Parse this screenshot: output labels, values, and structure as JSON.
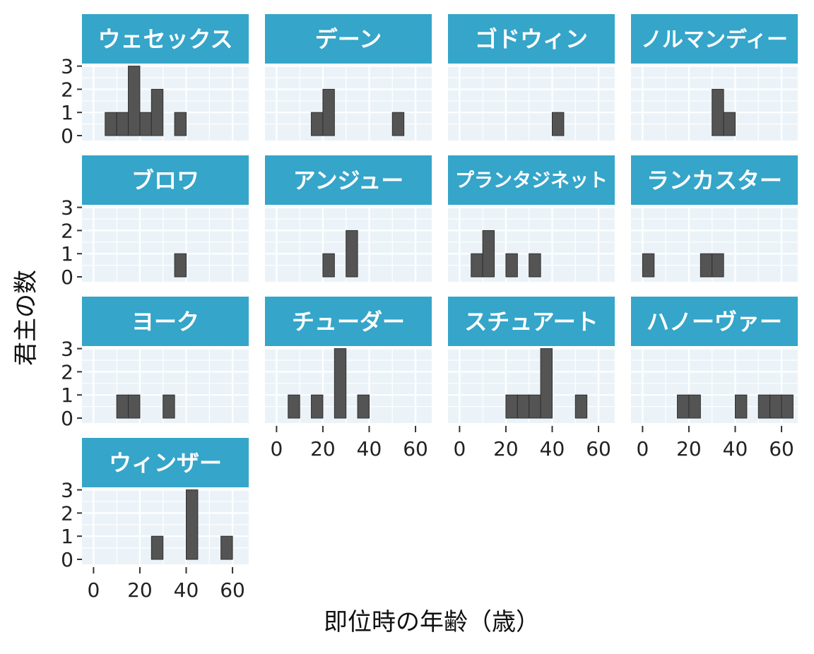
{
  "chart_data": {
    "type": "bar",
    "xlabel": "即位時の年齢（歳）",
    "ylabel": "君主の数",
    "xlim": [
      -5,
      67
    ],
    "ylim": [
      0,
      3
    ],
    "x_ticks": [
      0,
      20,
      40,
      60
    ],
    "y_ticks": [
      0,
      1,
      2,
      3
    ],
    "bin_width": 5,
    "grid": true,
    "colors": {
      "strip": "#35A5C9",
      "strip_text": "#ffffff",
      "panel_bg": "#EBF3F8",
      "bar": "#545454",
      "bar_stroke": "#2f2f2f"
    },
    "facets": [
      {
        "title": "ウェセックス",
        "bins": [
          {
            "x": 7.5,
            "count": 1
          },
          {
            "x": 12.5,
            "count": 1
          },
          {
            "x": 17.5,
            "count": 3
          },
          {
            "x": 22.5,
            "count": 1
          },
          {
            "x": 27.5,
            "count": 2
          },
          {
            "x": 37.5,
            "count": 1
          }
        ]
      },
      {
        "title": "デーン",
        "bins": [
          {
            "x": 17.5,
            "count": 1
          },
          {
            "x": 22.5,
            "count": 2
          },
          {
            "x": 52.5,
            "count": 1
          }
        ]
      },
      {
        "title": "ゴドウィン",
        "bins": [
          {
            "x": 42.5,
            "count": 1
          }
        ]
      },
      {
        "title": "ノルマンディー",
        "bins": [
          {
            "x": 32.5,
            "count": 2
          },
          {
            "x": 37.5,
            "count": 1
          }
        ]
      },
      {
        "title": "ブロワ",
        "bins": [
          {
            "x": 37.5,
            "count": 1
          }
        ]
      },
      {
        "title": "アンジュー",
        "bins": [
          {
            "x": 22.5,
            "count": 1
          },
          {
            "x": 32.5,
            "count": 2
          }
        ]
      },
      {
        "title": "プランタジネット",
        "bins": [
          {
            "x": 7.5,
            "count": 1
          },
          {
            "x": 12.5,
            "count": 2
          },
          {
            "x": 22.5,
            "count": 1
          },
          {
            "x": 32.5,
            "count": 1
          }
        ]
      },
      {
        "title": "ランカスター",
        "bins": [
          {
            "x": 2.5,
            "count": 1
          },
          {
            "x": 27.5,
            "count": 1
          },
          {
            "x": 32.5,
            "count": 1
          }
        ]
      },
      {
        "title": "ヨーク",
        "bins": [
          {
            "x": 12.5,
            "count": 1
          },
          {
            "x": 17.5,
            "count": 1
          },
          {
            "x": 32.5,
            "count": 1
          }
        ]
      },
      {
        "title": "チューダー",
        "bins": [
          {
            "x": 7.5,
            "count": 1
          },
          {
            "x": 17.5,
            "count": 1
          },
          {
            "x": 27.5,
            "count": 3
          },
          {
            "x": 37.5,
            "count": 1
          }
        ]
      },
      {
        "title": "スチュアート",
        "bins": [
          {
            "x": 22.5,
            "count": 1
          },
          {
            "x": 27.5,
            "count": 1
          },
          {
            "x": 32.5,
            "count": 1
          },
          {
            "x": 37.5,
            "count": 3
          },
          {
            "x": 52.5,
            "count": 1
          }
        ]
      },
      {
        "title": "ハノーヴァー",
        "bins": [
          {
            "x": 17.5,
            "count": 1
          },
          {
            "x": 22.5,
            "count": 1
          },
          {
            "x": 42.5,
            "count": 1
          },
          {
            "x": 52.5,
            "count": 1
          },
          {
            "x": 57.5,
            "count": 1
          },
          {
            "x": 62.5,
            "count": 1
          }
        ]
      },
      {
        "title": "ウィンザー",
        "bins": [
          {
            "x": 27.5,
            "count": 1
          },
          {
            "x": 42.5,
            "count": 3
          },
          {
            "x": 57.5,
            "count": 1
          }
        ]
      }
    ]
  }
}
